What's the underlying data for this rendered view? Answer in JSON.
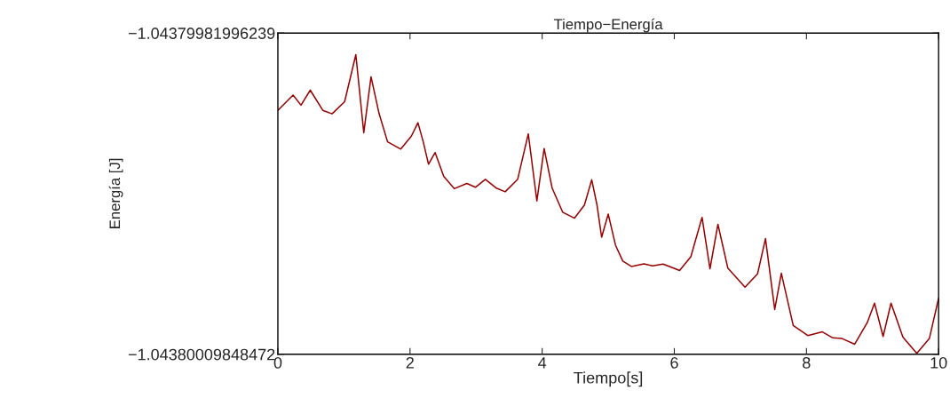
{
  "chart_data": {
    "type": "line",
    "title": "Tiempo−Energía",
    "xlabel": "Tiempo[s]",
    "ylabel": "Energía [J]",
    "x": [
      0.0,
      0.23,
      0.35,
      0.49,
      0.68,
      0.82,
      1.01,
      1.18,
      1.3,
      1.41,
      1.53,
      1.66,
      1.86,
      2.02,
      2.12,
      2.2,
      2.28,
      2.38,
      2.51,
      2.67,
      2.86,
      2.99,
      3.14,
      3.3,
      3.44,
      3.63,
      3.79,
      3.92,
      4.03,
      4.15,
      4.31,
      4.49,
      4.64,
      4.75,
      4.83,
      4.9,
      5.0,
      5.11,
      5.22,
      5.35,
      5.54,
      5.67,
      5.83,
      6.08,
      6.25,
      6.42,
      6.54,
      6.66,
      6.81,
      7.07,
      7.26,
      7.38,
      7.52,
      7.62,
      7.8,
      8.02,
      8.24,
      8.4,
      8.54,
      8.73,
      8.92,
      9.03,
      9.16,
      9.28,
      9.46,
      9.67,
      9.86,
      10.0
    ],
    "series": [
      {
        "color": "#990000",
        "values": [
          -1.043799887,
          -1.0437998738,
          -1.0437998825,
          -1.0437998695,
          -1.043799887,
          -1.04379989,
          -1.0437998795,
          -1.0437998387,
          -1.0437999064,
          -1.0437998579,
          -1.0437998894,
          -1.0437999143,
          -1.0437999206,
          -1.0437999094,
          -1.0437998977,
          -1.0437999143,
          -1.0437999337,
          -1.0437999236,
          -1.0437999442,
          -1.0437999549,
          -1.0437999504,
          -1.0437999537,
          -1.0437999469,
          -1.0437999542,
          -1.0437999576,
          -1.0437999467,
          -1.0437999074,
          -1.0437999656,
          -1.0437999201,
          -1.0437999542,
          -1.0437999753,
          -1.0437999805,
          -1.0437999691,
          -1.0437999472,
          -1.0437999691,
          -1.043799997,
          -1.043799977,
          -1.0438000039,
          -1.0438000177,
          -1.0438000224,
          -1.0438000201,
          -1.0438000218,
          -1.0438000203,
          -1.0438000259,
          -1.0438000139,
          -1.0437999798,
          -1.0438000244,
          -1.0437999858,
          -1.0438000238,
          -1.0438000403,
          -1.0438000288,
          -1.0437999982,
          -1.0438000597,
          -1.0438000283,
          -1.0438000736,
          -1.0438000823,
          -1.0438000791,
          -1.0438000843,
          -1.0438000849,
          -1.0438000898,
          -1.0438000711,
          -1.0438000542,
          -1.0438000831,
          -1.0438000542,
          -1.0438000836,
          -1.0438000978,
          -1.0438000849,
          -1.04380005
        ]
      }
    ],
    "xlim": [
      0,
      10
    ],
    "xticks": [
      0,
      2,
      4,
      6,
      8,
      10
    ],
    "ylim": [
      -1.04380009848472,
      -1.04379981996239
    ],
    "yticks": [
      {
        "value": -1.04380009848472,
        "label": "−1.04380009848472"
      },
      {
        "value": -1.04379981996239,
        "label": "−1.04379981996239"
      }
    ],
    "grid": false,
    "legend": false
  }
}
